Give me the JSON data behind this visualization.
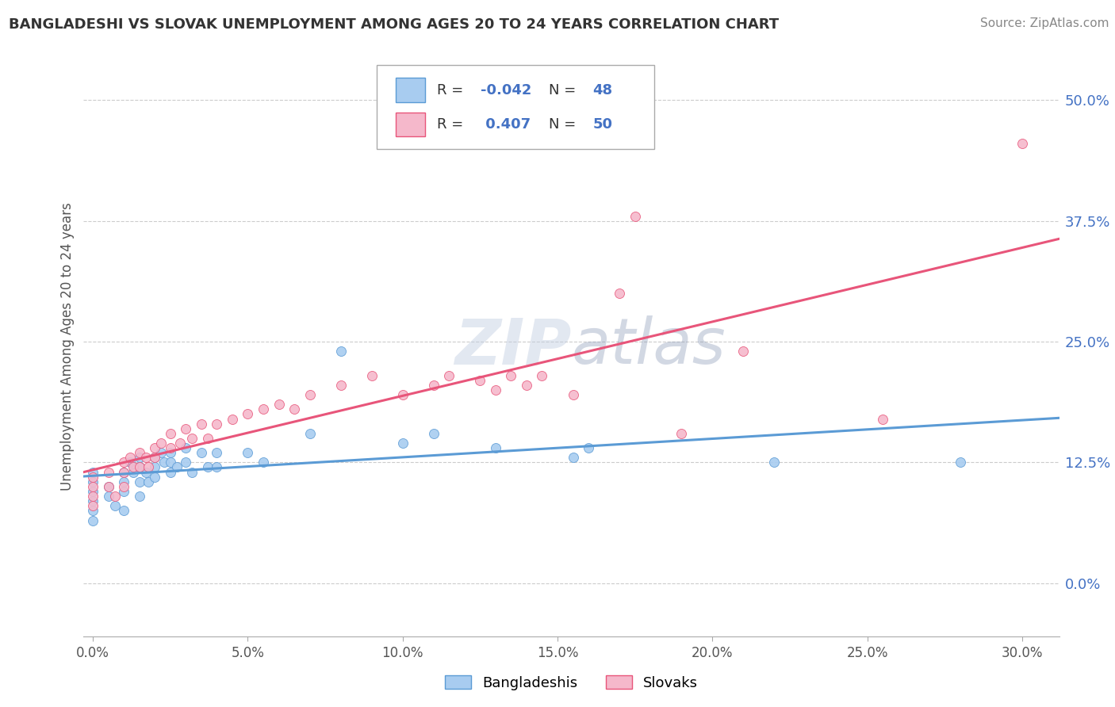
{
  "title": "BANGLADESHI VS SLOVAK UNEMPLOYMENT AMONG AGES 20 TO 24 YEARS CORRELATION CHART",
  "source": "Source: ZipAtlas.com",
  "ylabel": "Unemployment Among Ages 20 to 24 years",
  "xlim": [
    -0.003,
    0.312
  ],
  "ylim": [
    -0.055,
    0.545
  ],
  "xlabel_ticks": [
    0.0,
    0.05,
    0.1,
    0.15,
    0.2,
    0.25,
    0.3
  ],
  "ylabel_ticks": [
    0.0,
    0.125,
    0.25,
    0.375,
    0.5
  ],
  "legend_label1": "Bangladeshis",
  "legend_label2": "Slovaks",
  "R1": -0.042,
  "N1": 48,
  "R2": 0.407,
  "N2": 50,
  "color1": "#A8CCF0",
  "color2": "#F5B8CB",
  "line_color1": "#5B9BD5",
  "line_color2": "#E8557A",
  "watermark_color": "#C8D4E8",
  "background_color": "#FFFFFF",
  "grid_color": "#CCCCCC",
  "bangladeshi_x": [
    0.0,
    0.0,
    0.0,
    0.0,
    0.0,
    0.0,
    0.005,
    0.005,
    0.007,
    0.01,
    0.01,
    0.01,
    0.01,
    0.012,
    0.013,
    0.015,
    0.015,
    0.015,
    0.015,
    0.017,
    0.018,
    0.02,
    0.02,
    0.02,
    0.022,
    0.023,
    0.025,
    0.025,
    0.025,
    0.027,
    0.03,
    0.03,
    0.032,
    0.035,
    0.037,
    0.04,
    0.04,
    0.05,
    0.055,
    0.07,
    0.08,
    0.1,
    0.11,
    0.13,
    0.155,
    0.16,
    0.22,
    0.28
  ],
  "bangladeshi_y": [
    0.115,
    0.105,
    0.095,
    0.085,
    0.075,
    0.065,
    0.1,
    0.09,
    0.08,
    0.115,
    0.105,
    0.095,
    0.075,
    0.125,
    0.115,
    0.13,
    0.12,
    0.105,
    0.09,
    0.115,
    0.105,
    0.13,
    0.12,
    0.11,
    0.135,
    0.125,
    0.135,
    0.125,
    0.115,
    0.12,
    0.14,
    0.125,
    0.115,
    0.135,
    0.12,
    0.135,
    0.12,
    0.135,
    0.125,
    0.155,
    0.24,
    0.145,
    0.155,
    0.14,
    0.13,
    0.14,
    0.125,
    0.125
  ],
  "slovak_x": [
    0.0,
    0.0,
    0.0,
    0.0,
    0.005,
    0.005,
    0.007,
    0.01,
    0.01,
    0.01,
    0.012,
    0.013,
    0.015,
    0.015,
    0.017,
    0.018,
    0.02,
    0.02,
    0.022,
    0.025,
    0.025,
    0.028,
    0.03,
    0.032,
    0.035,
    0.037,
    0.04,
    0.045,
    0.05,
    0.055,
    0.06,
    0.065,
    0.07,
    0.08,
    0.09,
    0.1,
    0.11,
    0.115,
    0.125,
    0.13,
    0.135,
    0.14,
    0.145,
    0.155,
    0.17,
    0.175,
    0.19,
    0.21,
    0.255,
    0.3
  ],
  "slovak_y": [
    0.11,
    0.1,
    0.09,
    0.08,
    0.115,
    0.1,
    0.09,
    0.125,
    0.115,
    0.1,
    0.13,
    0.12,
    0.135,
    0.12,
    0.13,
    0.12,
    0.14,
    0.13,
    0.145,
    0.155,
    0.14,
    0.145,
    0.16,
    0.15,
    0.165,
    0.15,
    0.165,
    0.17,
    0.175,
    0.18,
    0.185,
    0.18,
    0.195,
    0.205,
    0.215,
    0.195,
    0.205,
    0.215,
    0.21,
    0.2,
    0.215,
    0.205,
    0.215,
    0.195,
    0.3,
    0.38,
    0.155,
    0.24,
    0.17,
    0.455
  ]
}
